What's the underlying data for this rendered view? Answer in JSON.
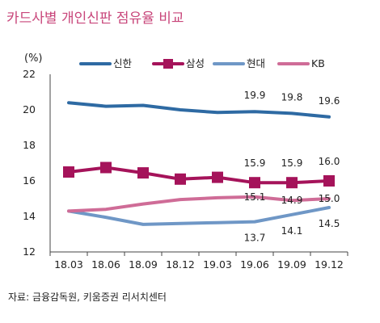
{
  "title": "카드사별 개인신판 점유율 비교",
  "source": "자료: 금융감독원, 키움증권 리서치센터",
  "chart_data": {
    "type": "line",
    "unit_label": "(%)",
    "categories": [
      "18.03",
      "18.06",
      "18.09",
      "18.12",
      "19.03",
      "19.06",
      "19.09",
      "19.12"
    ],
    "ylim": [
      12,
      22
    ],
    "yticks": [
      "12",
      "14",
      "16",
      "18",
      "20",
      "22"
    ],
    "grid": false,
    "legend_position": "top",
    "series": [
      {
        "name": "신한",
        "color": "#2e6aa3",
        "marker": "none",
        "values": [
          20.4,
          20.2,
          20.25,
          20.0,
          19.85,
          19.9,
          19.8,
          19.6
        ],
        "data_labels": [
          "",
          "",
          "",
          "",
          "",
          "19.9",
          "19.8",
          "19.6"
        ]
      },
      {
        "name": "삼성",
        "color": "#a5135a",
        "marker": "square",
        "values": [
          16.5,
          16.75,
          16.45,
          16.1,
          16.2,
          15.9,
          15.9,
          16.0
        ],
        "data_labels": [
          "",
          "",
          "",
          "",
          "",
          "15.9",
          "15.9",
          "16.0"
        ]
      },
      {
        "name": "현대",
        "color": "#6f97c6",
        "marker": "none",
        "values": [
          14.3,
          13.95,
          13.55,
          13.6,
          13.65,
          13.7,
          14.1,
          14.5
        ],
        "data_labels": [
          "",
          "",
          "",
          "",
          "",
          "13.7",
          "14.1",
          "14.5"
        ]
      },
      {
        "name": "KB",
        "color": "#cf6c97",
        "marker": "none",
        "values": [
          14.3,
          14.4,
          14.7,
          14.95,
          15.05,
          15.1,
          14.9,
          15.0
        ],
        "data_labels": [
          "",
          "",
          "",
          "",
          "",
          "15.1",
          "14.9",
          "15.0"
        ]
      }
    ]
  }
}
